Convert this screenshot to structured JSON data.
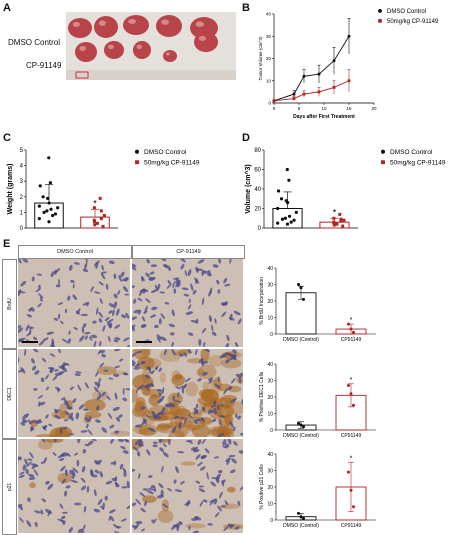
{
  "panels": {
    "A": "A",
    "B": "B",
    "C": "C",
    "D": "D",
    "E": "E"
  },
  "panel_a": {
    "labels": [
      "DMSO Control",
      "CP-91149"
    ]
  },
  "colors": {
    "control": "#111111",
    "treated": "#b22222",
    "tissue_bg": "#cdbfb4",
    "photo_bg": "#e4e0dc",
    "tumor": "#b8444a",
    "nuclei": "#4a4a8a",
    "dab": "#a8661e"
  },
  "panel_e": {
    "col_headers": [
      "DMSO Control",
      "CP-91149"
    ],
    "row_labels": [
      "BrdU",
      "DEC1",
      "p21"
    ]
  },
  "chart_data": [
    {
      "id": "B",
      "type": "line",
      "xlabel": "Days after First Treatment",
      "ylabel": "Tumor Volume (cm^3)",
      "xlim": [
        0,
        20
      ],
      "ylim": [
        0,
        40
      ],
      "xticks": [
        "0",
        "5",
        "10",
        "15",
        "20"
      ],
      "yticks": [
        "0",
        "10",
        "20",
        "30",
        "40"
      ],
      "legend": "top-right",
      "series": [
        {
          "name": "DMSO Control",
          "x": [
            0,
            4,
            6,
            9,
            12,
            15
          ],
          "y": [
            1,
            4,
            12,
            13,
            19,
            30
          ],
          "err": [
            0,
            1.5,
            3,
            4,
            6,
            8
          ]
        },
        {
          "name": "50mg/kg CP-91149",
          "x": [
            0,
            4,
            6,
            9,
            12,
            15
          ],
          "y": [
            1,
            2,
            4,
            5,
            7,
            10
          ],
          "err": [
            0,
            0.8,
            1.5,
            2,
            3,
            5
          ]
        }
      ]
    },
    {
      "id": "C",
      "type": "bar",
      "ylabel": "Weight (grams)",
      "ylim": [
        0,
        5
      ],
      "yticks": [
        "0",
        "1",
        "2",
        "3",
        "4",
        "5"
      ],
      "legend": "top-right",
      "series": [
        {
          "name": "DMSO Control",
          "mean": 1.6,
          "sd": 1.2,
          "points": [
            4.5,
            2.9,
            2.7,
            2.0,
            1.9,
            1.6,
            1.4,
            1.3,
            1.2,
            1.1,
            1.0,
            0.9,
            0.8,
            0.6,
            0.4
          ]
        },
        {
          "name": "50mg/kg CP-91149",
          "mean": 0.7,
          "sd": 0.5,
          "points": [
            1.9,
            1.3,
            1.1,
            0.8,
            0.6,
            0.5,
            0.4,
            0.3,
            0.2,
            0.1
          ]
        }
      ],
      "annotation": "*"
    },
    {
      "id": "D",
      "type": "bar",
      "ylabel": "Volume (cm^3)",
      "ylim": [
        0,
        80
      ],
      "yticks": [
        "0",
        "20",
        "40",
        "60",
        "80"
      ],
      "legend": "top-right",
      "series": [
        {
          "name": "DMSO Control",
          "mean": 20,
          "sd": 17,
          "points": [
            60,
            49,
            38,
            30,
            28,
            26,
            20,
            16,
            12,
            10,
            9,
            8,
            6,
            5,
            4
          ]
        },
        {
          "name": "50mg/kg CP-91149",
          "mean": 6,
          "sd": 4,
          "points": [
            14,
            10,
            9,
            8,
            7,
            6,
            5,
            4,
            3,
            2
          ]
        }
      ],
      "annotation": "*"
    },
    {
      "id": "E1",
      "type": "bar",
      "ylabel": "% BrdU Incorporation",
      "categories": [
        "DMSO (Control)",
        "CP91149"
      ],
      "values": [
        25,
        3
      ],
      "err": [
        4,
        3
      ],
      "ylim": [
        0,
        40
      ],
      "yticks": [
        "0",
        "10",
        "20",
        "30",
        "40"
      ],
      "points": [
        [
          30,
          28,
          21
        ],
        [
          6,
          3,
          1
        ]
      ],
      "annotation": "*"
    },
    {
      "id": "E2",
      "type": "bar",
      "ylabel": "% Positive DEC1 Cells",
      "categories": [
        "DMSO (Control)",
        "CP91149"
      ],
      "values": [
        3,
        21
      ],
      "err": [
        2,
        7
      ],
      "ylim": [
        0,
        40
      ],
      "yticks": [
        "0",
        "10",
        "20",
        "30",
        "40"
      ],
      "points": [
        [
          4,
          3,
          2
        ],
        [
          27,
          22,
          15
        ]
      ],
      "annotation": "*"
    },
    {
      "id": "E3",
      "type": "bar",
      "ylabel": "% Positive p21 Cells",
      "categories": [
        "DMSO (Control)",
        "CP91149"
      ],
      "values": [
        2,
        20
      ],
      "err": [
        2,
        15
      ],
      "ylim": [
        0,
        40
      ],
      "yticks": [
        "0",
        "10",
        "20",
        "30",
        "40"
      ],
      "points": [
        [
          4,
          2,
          1
        ],
        [
          29,
          18,
          8
        ]
      ],
      "annotation": "*"
    }
  ]
}
